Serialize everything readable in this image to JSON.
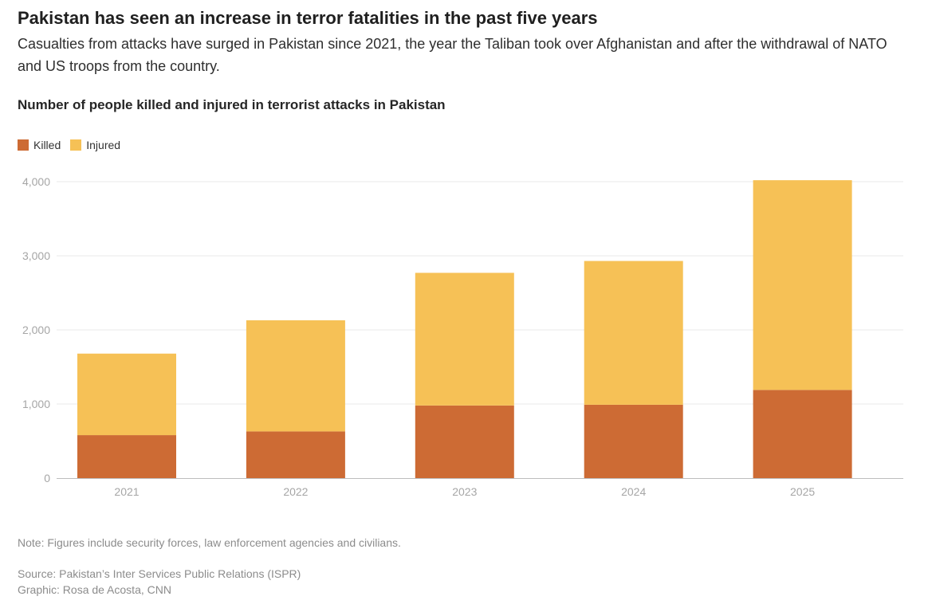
{
  "headline": "Pakistan has seen an increase in terror fatalities in the past five years",
  "dek": "Casualties from attacks have surged in Pakistan since 2021, the year the Taliban took over Afghanistan and after the withdrawal of NATO and US troops from the country.",
  "footer": {
    "note": "Note: Figures include security forces, law enforcement agencies and civilians.",
    "source": "Source: Pakistan’s Inter Services Public Relations (ISPR)",
    "credit": "Graphic: Rosa de Acosta, CNN"
  },
  "chart_data": {
    "type": "bar",
    "stacked": true,
    "title": "Number of people killed and injured in terrorist attacks in Pakistan",
    "categories": [
      "2021",
      "2022",
      "2023",
      "2024",
      "2025"
    ],
    "series": [
      {
        "name": "Killed",
        "color": "#cd6b34",
        "values": [
          580,
          630,
          980,
          990,
          1190
        ]
      },
      {
        "name": "Injured",
        "color": "#f6c156",
        "values": [
          1100,
          1500,
          1790,
          1940,
          2830
        ]
      }
    ],
    "xlabel": "",
    "ylabel": "",
    "ylim": [
      0,
      4000
    ],
    "yticks": [
      0,
      1000,
      2000,
      3000,
      4000
    ],
    "ytick_labels": [
      "0",
      "1,000",
      "2,000",
      "3,000",
      "4,000"
    ],
    "grid": true,
    "legend": "top-left",
    "gridline_color": "#e8e8e8",
    "axis_color": "#bdbdbd"
  }
}
